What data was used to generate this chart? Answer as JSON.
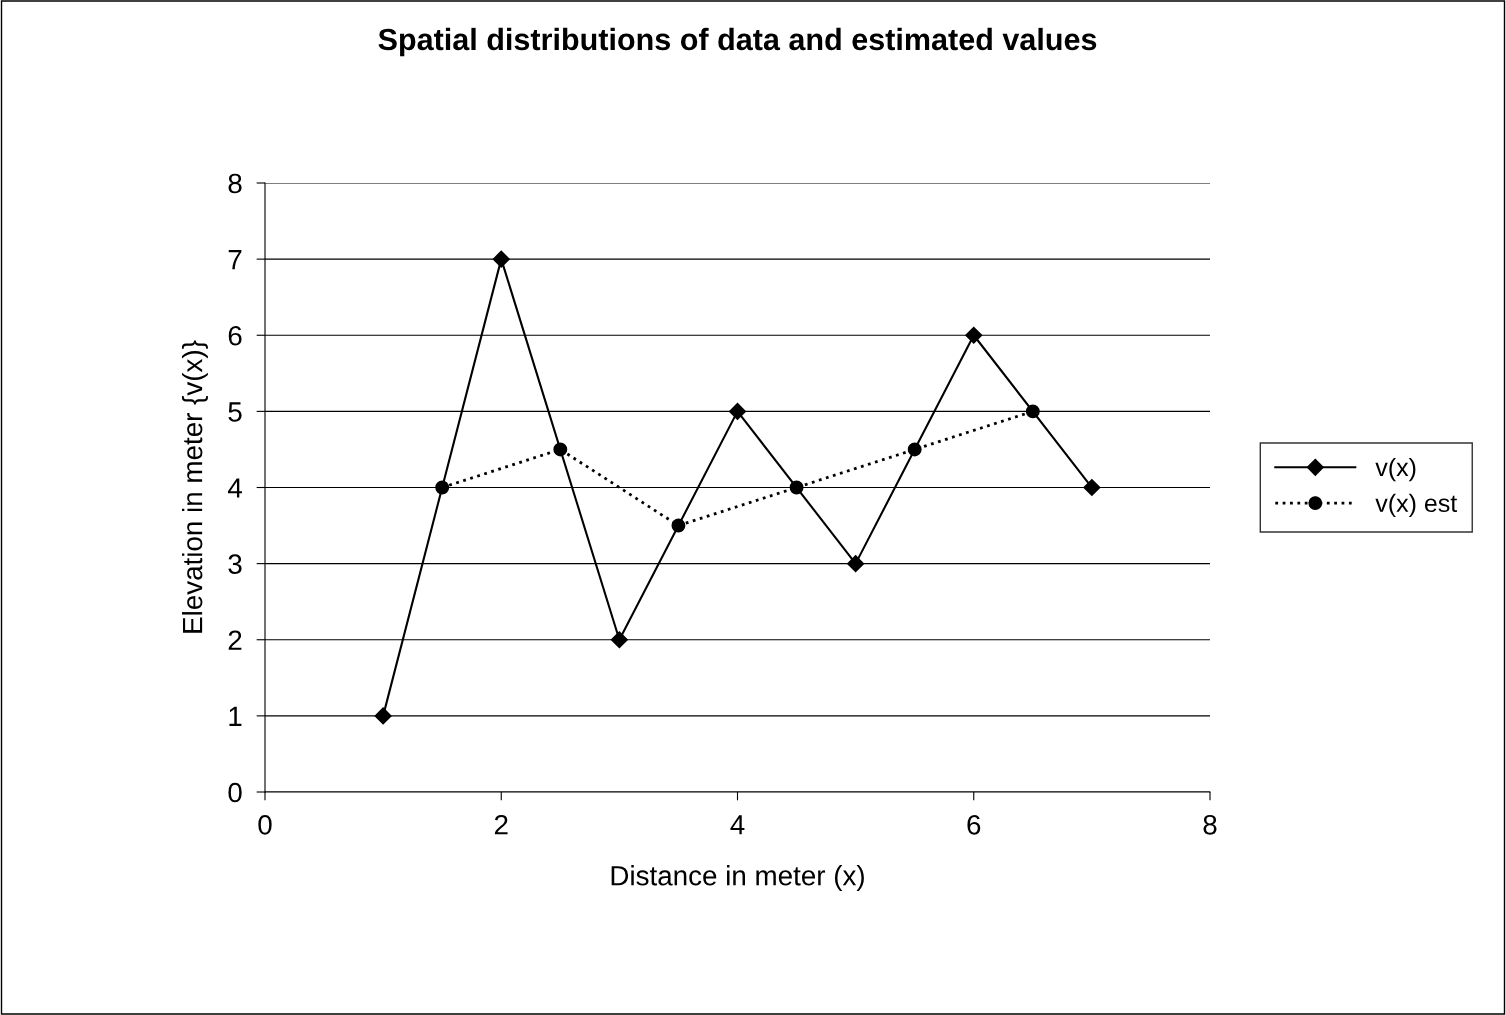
{
  "chart_data": {
    "type": "line",
    "title": "Spatial distributions of data and estimated values",
    "xlabel": "Distance in meter (x)",
    "ylabel": "Elevation in meter {v(x)}",
    "series": [
      {
        "name": "v(x)",
        "color": "#000000",
        "x": [
          1,
          2,
          3,
          4,
          5,
          6,
          7
        ],
        "values": [
          1,
          7,
          2,
          5,
          3,
          6,
          4
        ],
        "marker": "diamond",
        "line_style": "solid"
      },
      {
        "name": "v(x) est",
        "color": "#000000",
        "x": [
          1.5,
          2.5,
          3.5,
          4.5,
          5.5,
          6.5
        ],
        "values": [
          4,
          4.5,
          3.5,
          4,
          4.5,
          5
        ],
        "marker": "circle",
        "line_style": "dotted"
      }
    ],
    "xlim": [
      0,
      8
    ],
    "xticks": [
      0,
      2,
      4,
      6,
      8
    ],
    "ylim": [
      0,
      8
    ],
    "yticks": [
      0,
      1,
      2,
      3,
      4,
      5,
      6,
      7,
      8
    ],
    "grid": "y",
    "legend": "right"
  }
}
